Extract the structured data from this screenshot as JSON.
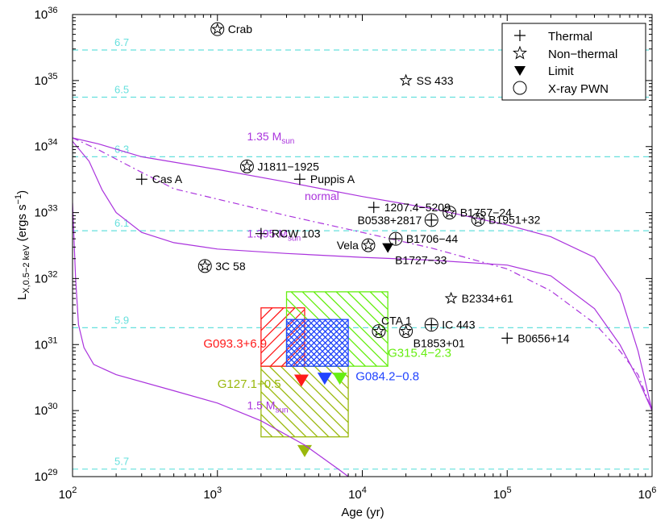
{
  "chart_data": {
    "type": "scatter",
    "xscale": "log",
    "yscale": "log",
    "xlim": [
      100,
      1000000
    ],
    "ylim": [
      1e+29,
      1e+36
    ],
    "xlabel": "Age (yr)",
    "ylabel": {
      "main": "L",
      "sub": "X,0.5−2 keV",
      "unit_open": " (ergs s",
      "unit_sup": "−1",
      "unit_close": ")"
    },
    "x_ticks": [
      {
        "value": 100,
        "base": "10",
        "exp": "2"
      },
      {
        "value": 1000,
        "base": "10",
        "exp": "3"
      },
      {
        "value": 10000,
        "base": "10",
        "exp": "4"
      },
      {
        "value": 100000,
        "base": "10",
        "exp": "5"
      },
      {
        "value": 1000000,
        "base": "10",
        "exp": "6"
      }
    ],
    "y_ticks": [
      {
        "value": 1e+29,
        "base": "10",
        "exp": "29"
      },
      {
        "value": 1e+30,
        "base": "10",
        "exp": "30"
      },
      {
        "value": 1e+31,
        "base": "10",
        "exp": "31"
      },
      {
        "value": 1e+32,
        "base": "10",
        "exp": "32"
      },
      {
        "value": 1e+33,
        "base": "10",
        "exp": "33"
      },
      {
        "value": 1e+34,
        "base": "10",
        "exp": "34"
      },
      {
        "value": 1e+35,
        "base": "10",
        "exp": "35"
      },
      {
        "value": 1e+36,
        "base": "10",
        "exp": "36"
      }
    ],
    "temperature_lines": [
      {
        "label": "6.7",
        "y": 2.9e+35
      },
      {
        "label": "6.5",
        "y": 5.6e+34
      },
      {
        "label": "6.3",
        "y": 7e+33
      },
      {
        "label": "6.1",
        "y": 5.3e+32
      },
      {
        "label": "5.9",
        "y": 1.8e+31
      },
      {
        "label": "5.7",
        "y": 1.3e+29
      }
    ],
    "legend": {
      "position": "top-right",
      "items": [
        {
          "label": "Thermal",
          "marker": "plus"
        },
        {
          "label": "Non−thermal",
          "marker": "star"
        },
        {
          "label": "Limit",
          "marker": "triangle-down"
        },
        {
          "label": "X-ray PWN",
          "marker": "circle"
        }
      ]
    },
    "cooling_curves": [
      {
        "name": "1.35",
        "label_main": "1.35 M",
        "label_sub": "sun",
        "label_at": [
          1600,
          1.25e+34
        ],
        "style": "solid",
        "points": [
          [
            100,
            1.35e+34
          ],
          [
            150,
            1.1e+34
          ],
          [
            300,
            7e+33
          ],
          [
            1000,
            4.5e+33
          ],
          [
            3000,
            2.9e+33
          ],
          [
            10000,
            1.75e+33
          ],
          [
            30000,
            1.15e+33
          ],
          [
            100000,
            6.5e+32
          ],
          [
            200000,
            4.3e+32
          ],
          [
            400000,
            2.1e+32
          ],
          [
            600000,
            6e+31
          ],
          [
            800000,
            8e+30
          ],
          [
            1000000,
            1e+30
          ]
        ]
      },
      {
        "name": "normal",
        "label_main": "normal",
        "label_sub": "",
        "label_at": [
          4000,
          1.55e+33
        ],
        "style": "dashdot",
        "points": [
          [
            100,
            1.35e+34
          ],
          [
            150,
            9e+33
          ],
          [
            250,
            5e+33
          ],
          [
            500,
            2.3e+33
          ],
          [
            1000,
            1.6e+33
          ],
          [
            3000,
            9e+32
          ],
          [
            10000,
            5e+32
          ],
          [
            30000,
            2.9e+32
          ],
          [
            100000,
            1.4e+32
          ],
          [
            200000,
            6.5e+31
          ],
          [
            400000,
            2.1e+31
          ],
          [
            600000,
            8e+30
          ],
          [
            800000,
            3.5e+30
          ],
          [
            1000000,
            1e+30
          ]
        ]
      },
      {
        "name": "1.395",
        "label_main": "1.395 M",
        "label_sub": "sun",
        "label_at": [
          1600,
          4.2e+32
        ],
        "style": "solid",
        "points": [
          [
            100,
            1.2e+34
          ],
          [
            130,
            6e+33
          ],
          [
            160,
            2.2e+33
          ],
          [
            200,
            1e+33
          ],
          [
            300,
            5e+32
          ],
          [
            500,
            3.5e+32
          ],
          [
            1000,
            2.8e+32
          ],
          [
            3000,
            2.4e+32
          ],
          [
            10000,
            2.1e+32
          ],
          [
            30000,
            1.9e+32
          ],
          [
            100000,
            1.6e+32
          ],
          [
            200000,
            1.1e+32
          ],
          [
            400000,
            3.5e+31
          ],
          [
            600000,
            1e+31
          ],
          [
            800000,
            3e+30
          ],
          [
            1000000,
            1e+30
          ]
        ]
      },
      {
        "name": "1.5",
        "label_main": "1.5 M",
        "label_sub": "sun",
        "label_at": [
          1600,
          1.05e+30
        ],
        "style": "solid",
        "points": [
          [
            100,
            1.4e+33
          ],
          [
            105,
            1e+32
          ],
          [
            110,
            2e+31
          ],
          [
            120,
            9e+30
          ],
          [
            140,
            5e+30
          ],
          [
            200,
            3.5e+30
          ],
          [
            500,
            2e+30
          ],
          [
            1000,
            1.3e+30
          ],
          [
            2000,
            7e+29
          ],
          [
            4000,
            3e+29
          ],
          [
            7000,
            1.25e+29
          ],
          [
            8000,
            1e+29
          ]
        ]
      }
    ],
    "points": [
      {
        "name": "Crab",
        "x": 1000,
        "y": 6e+35,
        "marker": "star-circle",
        "label_side": "right"
      },
      {
        "name": "SS 433",
        "x": 20000,
        "y": 1e+35,
        "marker": "star",
        "label_side": "right"
      },
      {
        "name": "J1811−1925",
        "x": 1600,
        "y": 5e+33,
        "marker": "star-circle",
        "label_side": "right"
      },
      {
        "name": "Cas A",
        "x": 300,
        "y": 3.2e+33,
        "marker": "plus",
        "label_side": "right"
      },
      {
        "name": "Puppis A",
        "x": 3700,
        "y": 3.2e+33,
        "marker": "plus",
        "label_side": "right"
      },
      {
        "name": "1207.4−5209",
        "x": 12000,
        "y": 1.2e+33,
        "marker": "plus",
        "label_side": "right"
      },
      {
        "name": "B0538+2817",
        "x": 30000,
        "y": 7.7e+32,
        "marker": "plus-circle",
        "label_side": "left"
      },
      {
        "name": "B1757−24",
        "x": 40000,
        "y": 1e+33,
        "marker": "star-circle",
        "label_side": "right"
      },
      {
        "name": "B1951+32",
        "x": 63000,
        "y": 7.8e+32,
        "marker": "star-circle",
        "label_side": "right"
      },
      {
        "name": "RCW 103",
        "x": 2000,
        "y": 4.8e+32,
        "marker": "plus",
        "label_side": "right"
      },
      {
        "name": "Vela",
        "x": 11000,
        "y": 3.2e+32,
        "marker": "star-circle",
        "label_side": "left"
      },
      {
        "name": "B1706−44",
        "x": 17000,
        "y": 4e+32,
        "marker": "plus-circle",
        "label_side": "right"
      },
      {
        "name": "B1727−33",
        "x": 15000,
        "y": 2.9e+32,
        "marker": "triangle-down",
        "label_side": "right-below"
      },
      {
        "name": "3C 58",
        "x": 820,
        "y": 1.55e+32,
        "marker": "star-circle",
        "label_side": "right"
      },
      {
        "name": "B2334+61",
        "x": 41000,
        "y": 5e+31,
        "marker": "star",
        "label_side": "right"
      },
      {
        "name": "CTA 1",
        "x": 13000,
        "y": 1.6e+31,
        "marker": "star-circle",
        "label_side": "right-above"
      },
      {
        "name": "IC 443",
        "x": 30000,
        "y": 2e+31,
        "marker": "plus-circle",
        "label_side": "right"
      },
      {
        "name": "B1853+01",
        "x": 20000,
        "y": 1.6e+31,
        "marker": "star-circle",
        "label_side": "right-below"
      },
      {
        "name": "B0656+14",
        "x": 100000,
        "y": 1.25e+31,
        "marker": "plus",
        "label_side": "right"
      }
    ],
    "limit_boxes": [
      {
        "name": "G127.1+0.5",
        "color": "#9ab80c",
        "x": [
          2000,
          8000
        ],
        "y": [
          4e+29,
          4.7e+30
        ],
        "hatch": "back",
        "arrow_x": 4000,
        "arrow_y": 2.4e+29,
        "label_at": [
          1000,
          2.2e+30
        ],
        "label_color": "#9ab80c"
      },
      {
        "name": "G093.3+6.9",
        "color": "#ff1a1a",
        "x": [
          2000,
          4000
        ],
        "y": [
          4.7e+30,
          3.6e+31
        ],
        "hatch": "fwd",
        "arrow_x": 3800,
        "arrow_y": 2.8e+30,
        "label_at": [
          800,
          9e+30
        ],
        "label_color": "#ff1a1a"
      },
      {
        "name": "G315.4−2.3",
        "color": "#66ee11",
        "x": [
          3000,
          15000
        ],
        "y": [
          4.7e+30,
          6.3e+31
        ],
        "hatch": "back",
        "arrow_x": 7000,
        "arrow_y": 3e+30,
        "label_at": [
          15000,
          6.5e+30
        ],
        "label_color": "#66ee11"
      },
      {
        "name": "G084.2−0.8",
        "color": "#2244ff",
        "x": [
          3000,
          8000
        ],
        "y": [
          4.7e+30,
          2.4e+31
        ],
        "hatch": "cross",
        "arrow_x": 5500,
        "arrow_y": 3e+30,
        "label_at": [
          9000,
          2.9e+30
        ],
        "label_color": "#2244ff"
      }
    ]
  }
}
